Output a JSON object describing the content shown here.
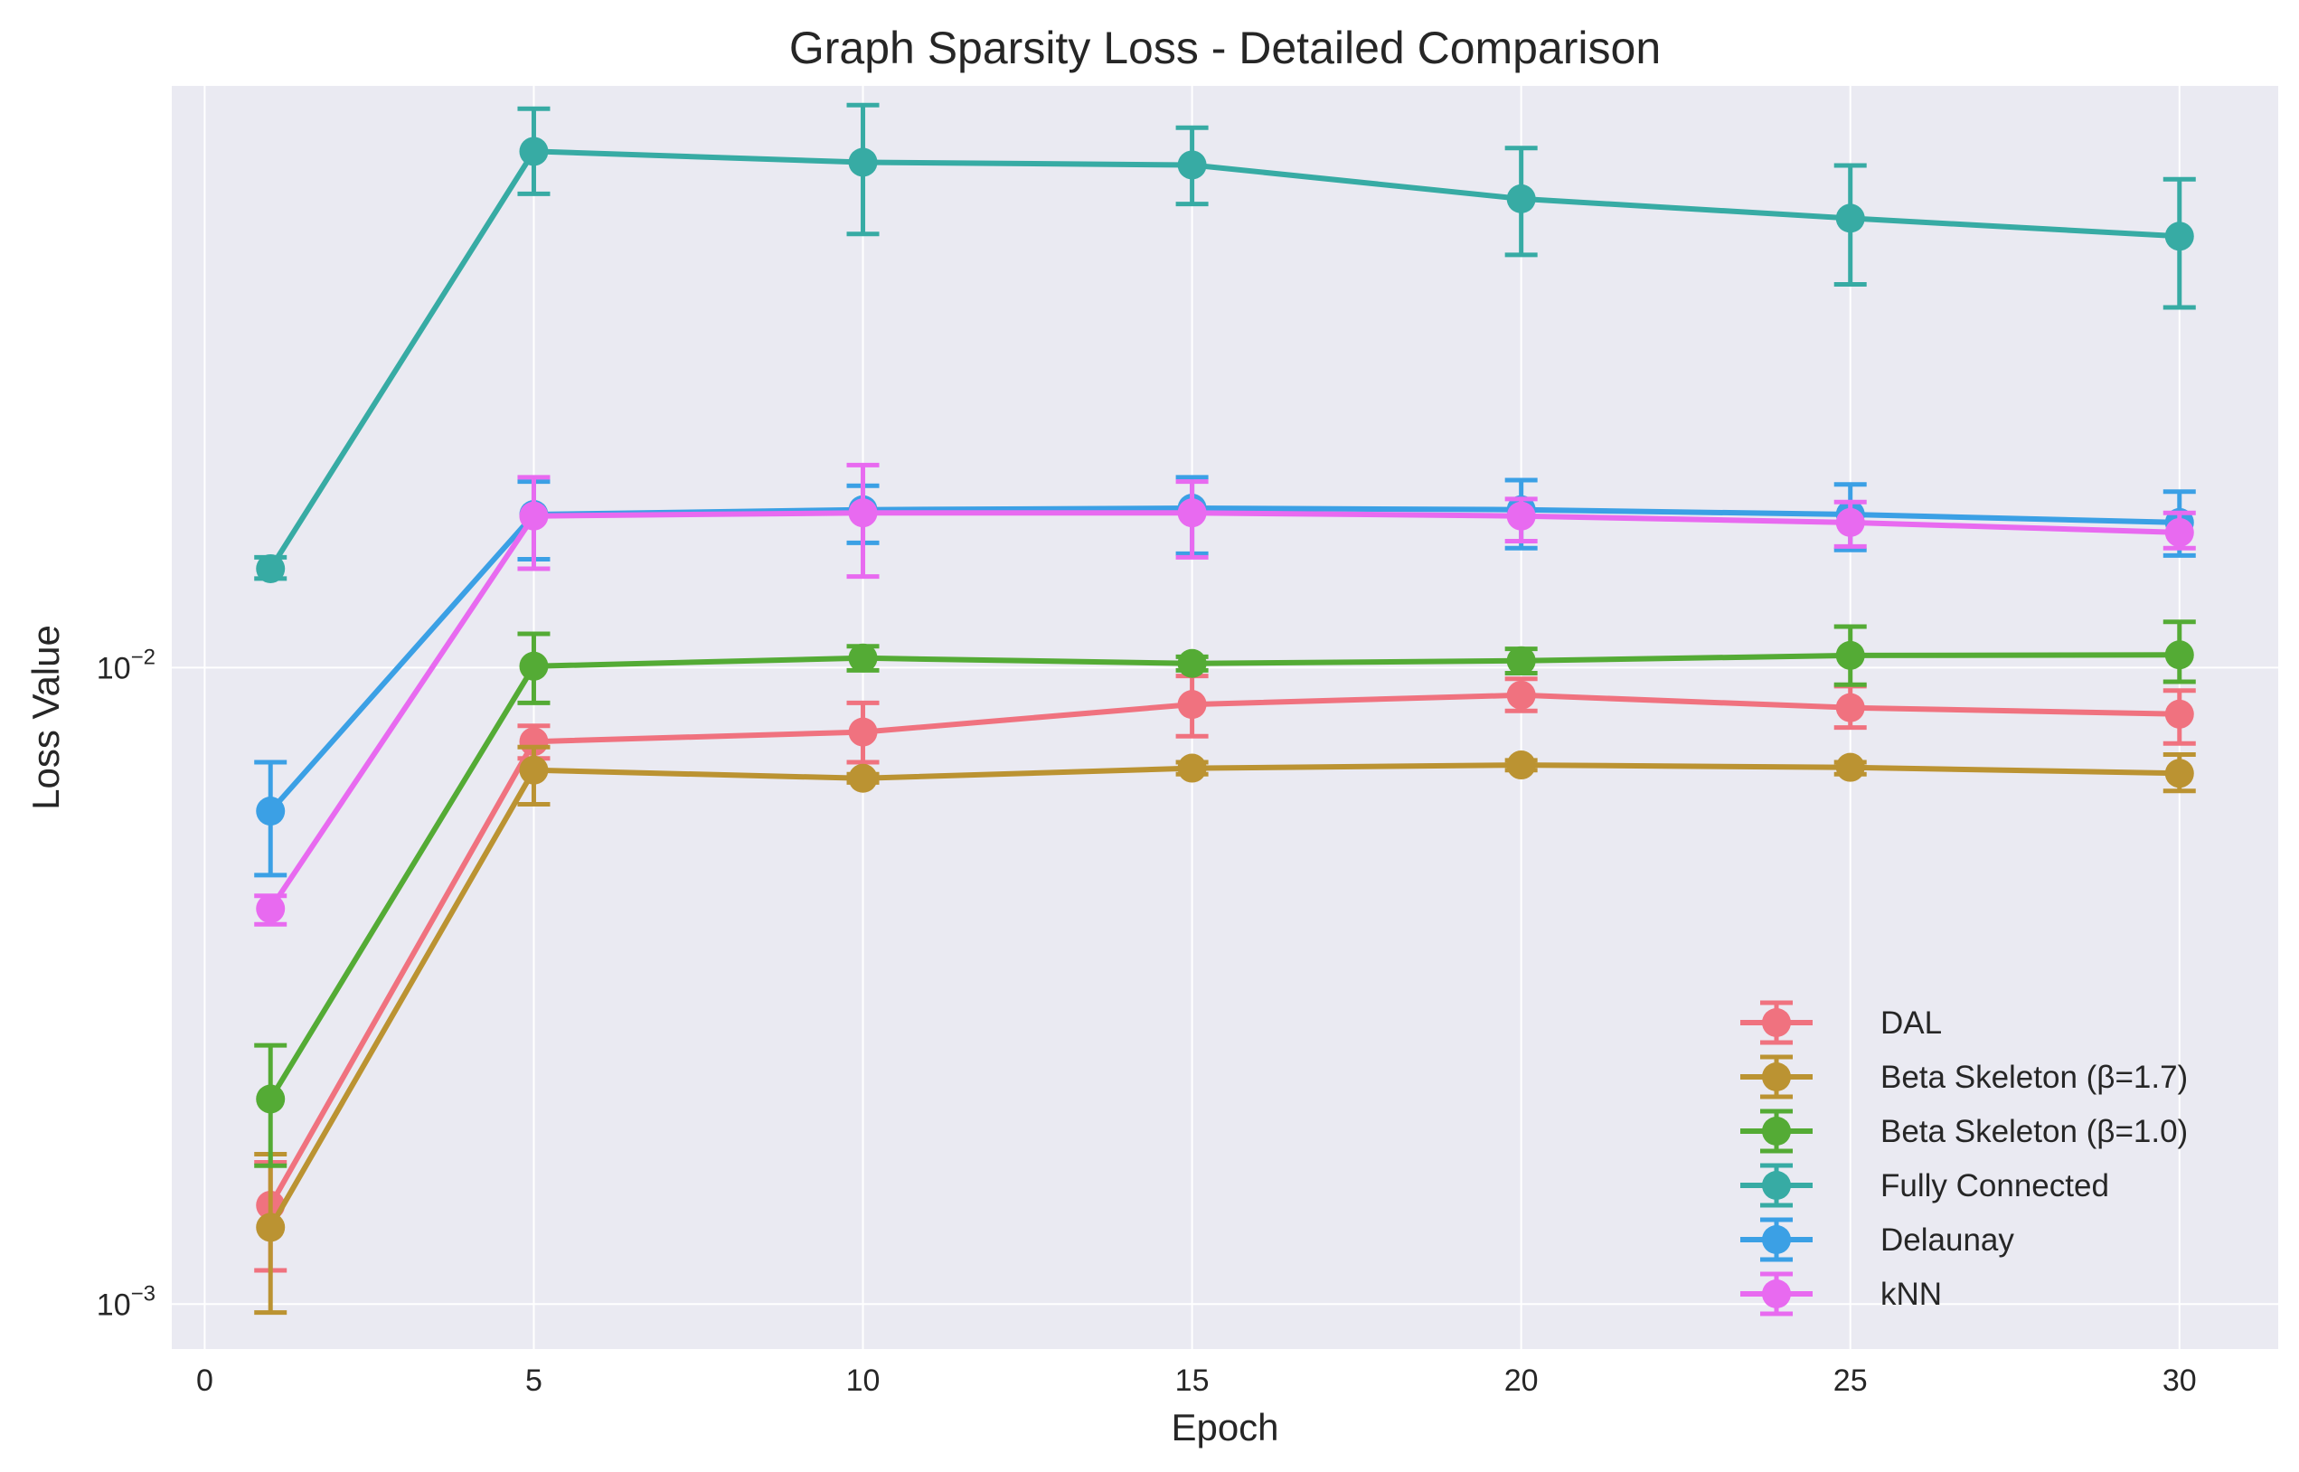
{
  "chart_data": {
    "type": "line",
    "title": "Graph Sparsity Loss - Detailed Comparison",
    "xlabel": "Epoch",
    "ylabel": "Loss Value",
    "x": [
      1,
      5,
      10,
      15,
      20,
      25,
      30
    ],
    "xlim": [
      -0.5,
      31.5
    ],
    "xticks": [
      0,
      5,
      10,
      15,
      20,
      25,
      30
    ],
    "yscale": "log",
    "ylim": [
      0.00085,
      0.082
    ],
    "yticks": [
      {
        "value": 0.001,
        "base": "10",
        "exp": "−3"
      },
      {
        "value": 0.01,
        "base": "10",
        "exp": "−2"
      }
    ],
    "grid": true,
    "error_bars": true,
    "legend_position": "lower right",
    "series": [
      {
        "name": "DAL",
        "color": "#f0727f",
        "values": [
          0.00143,
          0.00765,
          0.00792,
          0.00875,
          0.00905,
          0.00865,
          0.00845
        ],
        "err_low": [
          0.00113,
          0.0072,
          0.0071,
          0.0078,
          0.00855,
          0.00805,
          0.0076
        ],
        "err_high": [
          0.00167,
          0.0081,
          0.0088,
          0.0097,
          0.0096,
          0.00935,
          0.0092
        ]
      },
      {
        "name": "Beta Skeleton (β=1.7)",
        "color": "#bb9332",
        "values": [
          0.00132,
          0.0069,
          0.0067,
          0.00695,
          0.00703,
          0.00697,
          0.00682
        ],
        "err_low": [
          0.00097,
          0.0061,
          0.0066,
          0.0068,
          0.0069,
          0.0068,
          0.0064
        ],
        "err_high": [
          0.00172,
          0.0075,
          0.0068,
          0.0071,
          0.00715,
          0.0071,
          0.0073
        ]
      },
      {
        "name": "Beta Skeleton (β=1.0)",
        "color": "#54ab35",
        "values": [
          0.0021,
          0.01005,
          0.01035,
          0.01015,
          0.01025,
          0.01045,
          0.01047
        ],
        "err_low": [
          0.00165,
          0.0088,
          0.0099,
          0.0099,
          0.0098,
          0.0094,
          0.0095
        ],
        "err_high": [
          0.00255,
          0.0113,
          0.0108,
          0.0104,
          0.0107,
          0.0116,
          0.0118
        ]
      },
      {
        "name": "Fully Connected",
        "color": "#37aba4",
        "values": [
          0.0143,
          0.0647,
          0.0622,
          0.0616,
          0.0545,
          0.0508,
          0.0476
        ],
        "err_low": [
          0.0138,
          0.0555,
          0.048,
          0.0535,
          0.0445,
          0.04,
          0.0368
        ],
        "err_high": [
          0.0149,
          0.0755,
          0.0765,
          0.0705,
          0.0655,
          0.0615,
          0.0585
        ]
      },
      {
        "name": "Delaunay",
        "color": "#3ba0e5",
        "values": [
          0.00595,
          0.0174,
          0.0177,
          0.0178,
          0.0177,
          0.0174,
          0.0169
        ],
        "err_low": [
          0.00472,
          0.0148,
          0.0157,
          0.0151,
          0.0154,
          0.0153,
          0.015
        ],
        "err_high": [
          0.0071,
          0.0196,
          0.0193,
          0.0199,
          0.0197,
          0.0194,
          0.0189
        ]
      },
      {
        "name": "kNN",
        "color": "#e86af0",
        "values": [
          0.00418,
          0.0173,
          0.0175,
          0.0175,
          0.0173,
          0.0169,
          0.0163
        ],
        "err_low": [
          0.00395,
          0.0143,
          0.0139,
          0.0149,
          0.0158,
          0.0155,
          0.0154
        ],
        "err_high": [
          0.00438,
          0.0199,
          0.0208,
          0.0196,
          0.0184,
          0.0182,
          0.0175
        ]
      }
    ]
  }
}
